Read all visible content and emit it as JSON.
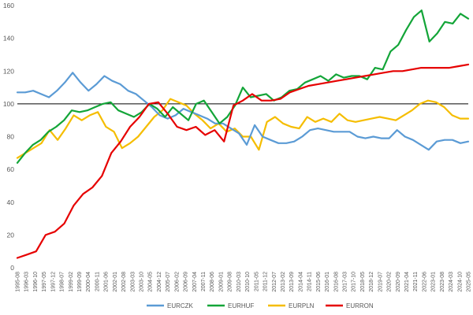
{
  "chart_data": {
    "type": "line",
    "title": "",
    "xlabel": "",
    "ylabel": "",
    "ylim": [
      0,
      160
    ],
    "yticks": [
      0,
      20,
      40,
      60,
      80,
      100,
      120,
      140,
      160
    ],
    "reference_line": 100,
    "grid": false,
    "legend_position": "bottom",
    "x_ticks": [
      "1995-08",
      "1996-03",
      "1996-10",
      "1997-05",
      "1997-12",
      "1998-07",
      "1999-02",
      "1999-09",
      "2000-04",
      "2000-11",
      "2001-06",
      "2002-01",
      "2002-08",
      "2003-03",
      "2003-10",
      "2004-05",
      "2004-12",
      "2005-07",
      "2006-02",
      "2006-09",
      "2007-04",
      "2007-11",
      "2008-06",
      "2009-01",
      "2009-08",
      "2010-03",
      "2010-10",
      "2011-05",
      "2011-12",
      "2012-07",
      "2013-02",
      "2013-09",
      "2014-04",
      "2014-11",
      "2015-06",
      "2016-01",
      "2016-08",
      "2017-03",
      "2017-10",
      "2018-05",
      "2018-12",
      "2019-07",
      "2020-02",
      "2020-09",
      "2021-04",
      "2021-11",
      "2022-06",
      "2023-01",
      "2023-08",
      "2024-03",
      "2024-10",
      "2025-05"
    ],
    "series": [
      {
        "name": "EURCZK",
        "color": "#5b9bd5",
        "values": [
          107,
          107,
          108,
          106,
          104,
          108,
          113,
          119,
          113,
          108,
          112,
          117,
          114,
          112,
          108,
          106,
          102,
          98,
          93,
          91,
          93,
          97,
          95,
          93,
          91,
          88,
          88,
          85,
          82,
          75,
          87,
          80,
          78,
          76,
          76,
          77,
          80,
          84,
          85,
          84,
          83,
          83,
          83,
          80,
          79,
          80,
          79,
          79,
          84,
          80,
          78,
          75,
          72,
          77,
          78,
          78,
          76,
          77
        ]
      },
      {
        "name": "EURHUF",
        "color": "#13a538",
        "values": [
          64,
          70,
          75,
          78,
          83,
          86,
          90,
          96,
          95,
          96,
          98,
          100,
          101,
          96,
          94,
          92,
          95,
          100,
          97,
          92,
          98,
          94,
          90,
          100,
          102,
          95,
          88,
          92,
          99,
          110,
          104,
          105,
          106,
          102,
          104,
          108,
          109,
          113,
          115,
          117,
          114,
          118,
          116,
          117,
          117,
          115,
          122,
          121,
          132,
          136,
          145,
          153,
          157,
          138,
          143,
          150,
          149,
          155,
          152
        ]
      },
      {
        "name": "EURPLN",
        "color": "#f5bd00",
        "values": [
          67,
          70,
          73,
          76,
          84,
          78,
          85,
          93,
          90,
          93,
          95,
          86,
          83,
          73,
          76,
          80,
          86,
          92,
          96,
          103,
          101,
          99,
          94,
          90,
          85,
          88,
          83,
          85,
          80,
          80,
          72,
          89,
          92,
          88,
          86,
          85,
          92,
          89,
          91,
          89,
          94,
          90,
          89,
          90,
          91,
          92,
          91,
          90,
          93,
          96,
          100,
          102,
          101,
          98,
          93,
          91,
          91
        ]
      },
      {
        "name": "EURRON",
        "color": "#e60000",
        "values": [
          6,
          8,
          10,
          20,
          22,
          27,
          38,
          45,
          49,
          56,
          70,
          77,
          86,
          92,
          100,
          101,
          94,
          86,
          84,
          86,
          81,
          84,
          77,
          99,
          102,
          106,
          102,
          102,
          103,
          107,
          109,
          111,
          112,
          113,
          114,
          115,
          116,
          117,
          118,
          119,
          120,
          120,
          121,
          122,
          122,
          122,
          122,
          123,
          124
        ]
      }
    ]
  }
}
